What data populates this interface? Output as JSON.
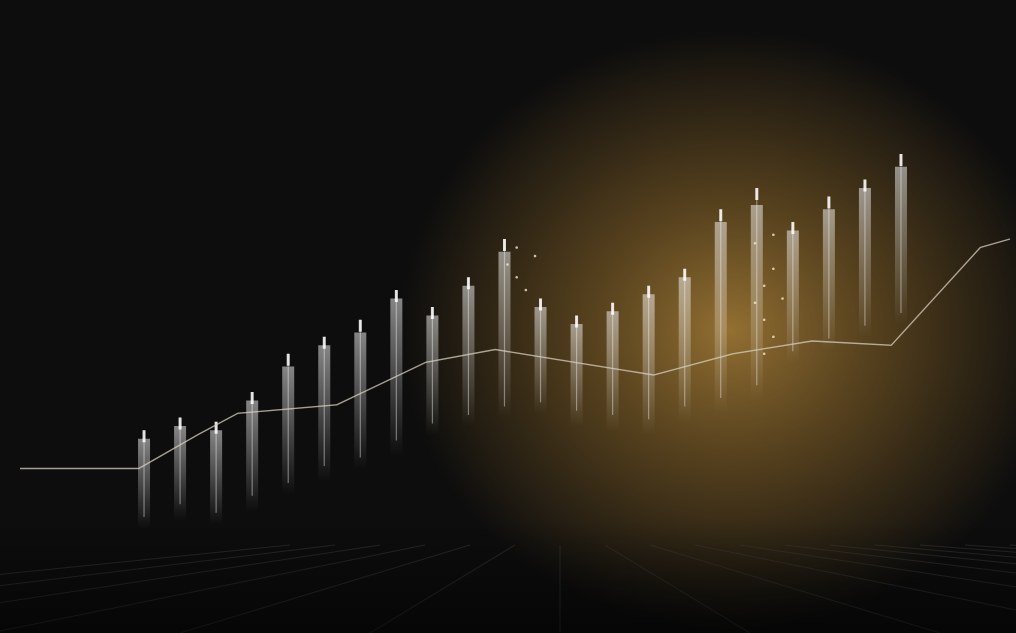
{
  "colors": {
    "background": "#0d0d0d",
    "glow": "#9a7534",
    "glow_mid": "#6a4f22",
    "candle": "#e6e6e6",
    "trend_line": "#d8cfc0",
    "floor_grid": "#3a3a3a"
  },
  "chart_data": {
    "type": "candlestick",
    "title": "",
    "xlabel": "",
    "ylabel": "",
    "grid": false,
    "ylim": [
      0,
      100
    ],
    "trend": [
      [
        0,
        18
      ],
      [
        12,
        18
      ],
      [
        18,
        26
      ],
      [
        22,
        31
      ],
      [
        32,
        33
      ],
      [
        41,
        43
      ],
      [
        48,
        46
      ],
      [
        56,
        43
      ],
      [
        64,
        40
      ],
      [
        72,
        45
      ],
      [
        80,
        48
      ],
      [
        88,
        47
      ],
      [
        97,
        70
      ],
      [
        100,
        72
      ]
    ],
    "candles": [
      {
        "x": 2,
        "low": 16,
        "high": 27,
        "open": 18,
        "close": 25
      },
      {
        "x": 5,
        "low": 19,
        "high": 30,
        "open": 20,
        "close": 28
      },
      {
        "x": 8,
        "low": 17,
        "high": 29,
        "open": 19,
        "close": 27
      },
      {
        "x": 11,
        "low": 21,
        "high": 36,
        "open": 22,
        "close": 34
      },
      {
        "x": 14,
        "low": 24,
        "high": 45,
        "open": 26,
        "close": 42
      },
      {
        "x": 17,
        "low": 28,
        "high": 49,
        "open": 29,
        "close": 47
      },
      {
        "x": 20,
        "low": 30,
        "high": 53,
        "open": 32,
        "close": 50
      },
      {
        "x": 23,
        "low": 34,
        "high": 60,
        "open": 35,
        "close": 58
      },
      {
        "x": 26,
        "low": 38,
        "high": 56,
        "open": 40,
        "close": 54
      },
      {
        "x": 29,
        "low": 40,
        "high": 63,
        "open": 42,
        "close": 61
      },
      {
        "x": 32,
        "low": 42,
        "high": 72,
        "open": 44,
        "close": 69
      },
      {
        "x": 35,
        "low": 43,
        "high": 58,
        "open": 45,
        "close": 56
      },
      {
        "x": 38,
        "low": 41,
        "high": 54,
        "open": 42,
        "close": 52
      },
      {
        "x": 41,
        "low": 40,
        "high": 57,
        "open": 41,
        "close": 55
      },
      {
        "x": 44,
        "low": 39,
        "high": 61,
        "open": 40,
        "close": 59
      },
      {
        "x": 47,
        "low": 42,
        "high": 65,
        "open": 43,
        "close": 63
      },
      {
        "x": 50,
        "low": 44,
        "high": 79,
        "open": 45,
        "close": 76
      },
      {
        "x": 53,
        "low": 47,
        "high": 84,
        "open": 48,
        "close": 80
      },
      {
        "x": 56,
        "low": 55,
        "high": 76,
        "open": 57,
        "close": 74
      },
      {
        "x": 59,
        "low": 58,
        "high": 82,
        "open": 60,
        "close": 79
      },
      {
        "x": 62,
        "low": 61,
        "high": 86,
        "open": 63,
        "close": 84
      },
      {
        "x": 65,
        "low": 64,
        "high": 92,
        "open": 66,
        "close": 89
      }
    ],
    "sparkles": [
      [
        51,
        66
      ],
      [
        52,
        63
      ],
      [
        52,
        70
      ],
      [
        53,
        60
      ],
      [
        54,
        68
      ],
      [
        78,
        57
      ],
      [
        79,
        61
      ],
      [
        80,
        65
      ],
      [
        79,
        53
      ],
      [
        81,
        58
      ],
      [
        78,
        71
      ],
      [
        80,
        73
      ],
      [
        79,
        45
      ],
      [
        80,
        49
      ]
    ]
  }
}
